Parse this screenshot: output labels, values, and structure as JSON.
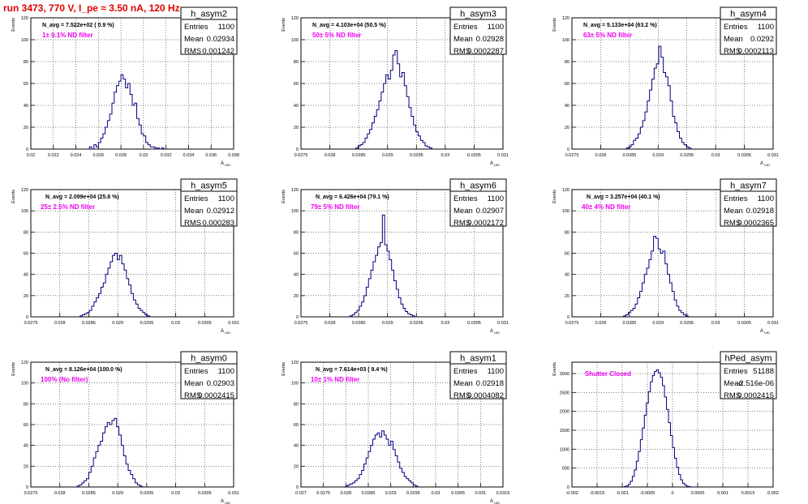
{
  "run_title": "run 3473,   770 V, I_pe ≈ 3.50 nA, 120 Hz",
  "colors": {
    "histogram": "#00007f",
    "annotation": "#ee00ee",
    "title": "#e00000",
    "grid": "#000000"
  },
  "chart_data": [
    {
      "type": "bar",
      "hist_name": "h_asym2",
      "navg": "N_avg = 7.522e+02 ( 0.9 %)",
      "filter": "1± 0.1% ND filter",
      "stats": {
        "entries_label": "Entries",
        "entries": "1100",
        "mean_label": "Mean",
        "mean": "0.02934",
        "rms_label": "RMS",
        "rms": "0.001242"
      },
      "ylabel": "Events",
      "xlabel": "A_UID",
      "xlim": [
        0.02,
        0.038
      ],
      "ylim": [
        0,
        120
      ],
      "xticks": [
        0.02,
        0.022,
        0.024,
        0.026,
        0.028,
        0.03,
        0.032,
        0.034,
        0.036,
        0.038
      ],
      "xtick_labels": [
        "0.02",
        "0.022",
        "0.024",
        "0.026",
        "0.028",
        "0.03",
        "0.032",
        "0.034",
        "0.036",
        "0.038"
      ],
      "yticks": [
        0,
        20,
        40,
        60,
        80,
        100,
        120
      ],
      "ytick_labels": [
        "0",
        "20",
        "40",
        "60",
        "80",
        "100",
        "120"
      ],
      "bin_start": 0.0252,
      "bin_width": 0.0002,
      "counts": [
        2,
        0,
        4,
        2,
        6,
        10,
        14,
        20,
        26,
        32,
        42,
        52,
        58,
        62,
        68,
        64,
        56,
        60,
        50,
        40,
        42,
        28,
        22,
        14,
        12,
        6,
        4,
        2,
        2,
        1,
        1,
        0,
        1
      ]
    },
    {
      "type": "bar",
      "hist_name": "h_asym3",
      "navg": "N_avg = 4.103e+04 (50.5 %)",
      "filter": "50± 5% ND filter",
      "stats": {
        "entries_label": "Entries",
        "entries": "1100",
        "mean_label": "Mean",
        "mean": "0.02928",
        "rms_label": "RMS",
        "rms": "0.0002287"
      },
      "ylabel": "Events",
      "xlabel": "A_UID",
      "xlim": [
        0.0275,
        0.031
      ],
      "ylim": [
        0,
        120
      ],
      "xticks": [
        0.0275,
        0.028,
        0.0285,
        0.029,
        0.0295,
        0.03,
        0.0305,
        0.031
      ],
      "xtick_labels": [
        "0.0275",
        "0.028",
        "0.0285",
        "0.029",
        "0.0295",
        "0.03",
        "0.0305",
        "0.031"
      ],
      "yticks": [
        0,
        20,
        40,
        60,
        80,
        100,
        120
      ],
      "ytick_labels": [
        "0",
        "20",
        "40",
        "60",
        "80",
        "100",
        "120"
      ],
      "bin_start": 0.02845,
      "bin_width": 4e-05,
      "counts": [
        1,
        3,
        4,
        6,
        10,
        14,
        18,
        24,
        30,
        36,
        44,
        52,
        60,
        68,
        64,
        72,
        86,
        90,
        78,
        66,
        70,
        58,
        48,
        38,
        30,
        22,
        16,
        12,
        8,
        6,
        3,
        2,
        1
      ]
    },
    {
      "type": "bar",
      "hist_name": "h_asym4",
      "navg": "N_avg = 5.133e+04 (63.2 %)",
      "filter": "63± 5% ND filter",
      "stats": {
        "entries_label": "Entries",
        "entries": "1100",
        "mean_label": "Mean",
        "mean": "0.0292",
        "rms_label": "RMS",
        "rms": "0.0002113"
      },
      "ylabel": "Events",
      "xlabel": "A_UID",
      "xlim": [
        0.0275,
        0.031
      ],
      "ylim": [
        0,
        120
      ],
      "xticks": [
        0.0275,
        0.028,
        0.0285,
        0.029,
        0.0295,
        0.03,
        0.0305,
        0.031
      ],
      "xtick_labels": [
        "0.0275",
        "0.028",
        "0.0285",
        "0.029",
        "0.0295",
        "0.03",
        "0.0305",
        "0.031"
      ],
      "yticks": [
        0,
        20,
        40,
        60,
        80,
        100,
        120
      ],
      "ytick_labels": [
        "0",
        "20",
        "40",
        "60",
        "80",
        "100",
        "120"
      ],
      "bin_start": 0.02845,
      "bin_width": 4e-05,
      "counts": [
        1,
        2,
        4,
        8,
        10,
        14,
        20,
        26,
        34,
        44,
        54,
        64,
        74,
        78,
        94,
        84,
        70,
        66,
        58,
        44,
        30,
        24,
        16,
        10,
        6,
        4,
        2,
        1
      ]
    },
    {
      "type": "bar",
      "hist_name": "h_asym5",
      "navg": "N_avg = 2.099e+04 (25.8 %)",
      "filter": "25± 2.5% ND filter",
      "stats": {
        "entries_label": "Entries",
        "entries": "1100",
        "mean_label": "Mean",
        "mean": "0.02912",
        "rms_label": "RMS",
        "rms": "0.000283"
      },
      "ylabel": "Events",
      "xlabel": "A_UID",
      "xlim": [
        0.0275,
        0.031
      ],
      "ylim": [
        0,
        120
      ],
      "xticks": [
        0.0275,
        0.028,
        0.0285,
        0.029,
        0.0295,
        0.03,
        0.0305,
        0.031
      ],
      "xtick_labels": [
        "0.0275",
        "0.028",
        "0.0285",
        "0.029",
        "0.0295",
        "0.03",
        "0.0305",
        "0.031"
      ],
      "yticks": [
        0,
        20,
        40,
        60,
        80,
        100,
        120
      ],
      "ytick_labels": [
        "0",
        "20",
        "40",
        "60",
        "80",
        "100",
        "120"
      ],
      "bin_start": 0.02835,
      "bin_width": 4e-05,
      "counts": [
        1,
        2,
        3,
        4,
        6,
        10,
        14,
        18,
        22,
        28,
        32,
        40,
        46,
        52,
        58,
        60,
        54,
        58,
        50,
        44,
        36,
        30,
        22,
        16,
        12,
        8,
        6,
        4,
        2,
        1
      ]
    },
    {
      "type": "bar",
      "hist_name": "h_asym6",
      "navg": "N_avg = 6.426e+04 (79.1 %)",
      "filter": "79± 5% ND filter",
      "stats": {
        "entries_label": "Entries",
        "entries": "1100",
        "mean_label": "Mean",
        "mean": "0.02907",
        "rms_label": "RMS",
        "rms": "0.0002172"
      },
      "ylabel": "Events",
      "xlabel": "A_UID",
      "xlim": [
        0.0275,
        0.031
      ],
      "ylim": [
        0,
        120
      ],
      "xticks": [
        0.0275,
        0.028,
        0.0285,
        0.029,
        0.0295,
        0.03,
        0.0305,
        0.031
      ],
      "xtick_labels": [
        "0.0275",
        "0.028",
        "0.0285",
        "0.029",
        "0.0295",
        "0.03",
        "0.0305",
        "0.031"
      ],
      "yticks": [
        0,
        20,
        40,
        60,
        80,
        100,
        120
      ],
      "ytick_labels": [
        "0",
        "20",
        "40",
        "60",
        "80",
        "100",
        "120"
      ],
      "bin_start": 0.02835,
      "bin_width": 4e-05,
      "counts": [
        1,
        2,
        4,
        6,
        10,
        14,
        20,
        28,
        36,
        44,
        52,
        58,
        66,
        70,
        96,
        68,
        62,
        54,
        44,
        34,
        26,
        18,
        12,
        8,
        5,
        3,
        2,
        1
      ]
    },
    {
      "type": "bar",
      "hist_name": "h_asym7",
      "navg": "N_avg = 3.257e+04 (40.1 %)",
      "filter": "40± 4% ND filter",
      "stats": {
        "entries_label": "Entries",
        "entries": "1100",
        "mean_label": "Mean",
        "mean": "0.02918",
        "rms_label": "RMS",
        "rms": "0.0002365"
      },
      "ylabel": "Events",
      "xlabel": "A_UID",
      "xlim": [
        0.0275,
        0.031
      ],
      "ylim": [
        0,
        120
      ],
      "xticks": [
        0.0275,
        0.028,
        0.0285,
        0.029,
        0.0295,
        0.03,
        0.0305,
        0.031
      ],
      "xtick_labels": [
        "0.0275",
        "0.028",
        "0.0285",
        "0.029",
        "0.0295",
        "0.03",
        "0.0305",
        "0.031"
      ],
      "yticks": [
        0,
        20,
        40,
        60,
        80,
        100,
        120
      ],
      "ytick_labels": [
        "0",
        "20",
        "40",
        "60",
        "80",
        "100",
        "120"
      ],
      "bin_start": 0.0284,
      "bin_width": 4e-05,
      "counts": [
        1,
        2,
        4,
        6,
        8,
        12,
        18,
        24,
        32,
        40,
        46,
        54,
        62,
        76,
        74,
        64,
        60,
        62,
        50,
        40,
        32,
        24,
        16,
        10,
        6,
        4,
        2,
        1
      ]
    },
    {
      "type": "bar",
      "hist_name": "h_asym0",
      "navg": "N_avg = 8.126e+04 (100.0 %)",
      "filter": "100% (No filter)",
      "stats": {
        "entries_label": "Entries",
        "entries": "1100",
        "mean_label": "Mean",
        "mean": "0.02903",
        "rms_label": "RMS",
        "rms": "0.0002415"
      },
      "ylabel": "Events",
      "xlabel": "A_UID",
      "xlim": [
        0.0275,
        0.031
      ],
      "ylim": [
        0,
        120
      ],
      "xticks": [
        0.0275,
        0.028,
        0.0285,
        0.029,
        0.0295,
        0.03,
        0.0305,
        0.031
      ],
      "xtick_labels": [
        "0.0275",
        "0.028",
        "0.0285",
        "0.029",
        "0.0295",
        "0.03",
        "0.0305",
        "0.031"
      ],
      "yticks": [
        0,
        20,
        40,
        60,
        80,
        100,
        120
      ],
      "ytick_labels": [
        "0",
        "20",
        "40",
        "60",
        "80",
        "100",
        "120"
      ],
      "bin_start": 0.0283,
      "bin_width": 4e-05,
      "counts": [
        1,
        2,
        4,
        6,
        8,
        14,
        20,
        28,
        34,
        40,
        44,
        52,
        58,
        62,
        60,
        64,
        66,
        58,
        50,
        40,
        30,
        22,
        16,
        12,
        8,
        4,
        2,
        1
      ]
    },
    {
      "type": "bar",
      "hist_name": "h_asym1",
      "navg": "N_avg = 7.614e+03 ( 9.4 %)",
      "filter": "10± 1% ND filter",
      "stats": {
        "entries_label": "Entries",
        "entries": "1100",
        "mean_label": "Mean",
        "mean": "0.02918",
        "rms_label": "RMS",
        "rms": "0.0004082"
      },
      "ylabel": "Events",
      "xlabel": "A_UID",
      "xlim": [
        0.027,
        0.0315
      ],
      "ylim": [
        0,
        120
      ],
      "xticks": [
        0.027,
        0.0275,
        0.028,
        0.0285,
        0.029,
        0.0295,
        0.03,
        0.0305,
        0.031,
        0.0315
      ],
      "xtick_labels": [
        "0.027",
        "0.0275",
        "0.028",
        "0.0285",
        "0.029",
        "0.0295",
        "0.03",
        "0.0305",
        "0.031",
        "0.0315"
      ],
      "yticks": [
        0,
        20,
        40,
        60,
        80,
        100,
        120
      ],
      "ytick_labels": [
        "0",
        "20",
        "40",
        "60",
        "80",
        "100",
        "120"
      ],
      "bin_start": 0.028,
      "bin_width": 5e-05,
      "counts": [
        1,
        2,
        3,
        4,
        6,
        8,
        12,
        16,
        22,
        28,
        34,
        40,
        46,
        50,
        52,
        48,
        54,
        50,
        46,
        40,
        44,
        36,
        30,
        24,
        18,
        14,
        10,
        8,
        6,
        4,
        2,
        1
      ]
    },
    {
      "type": "bar",
      "hist_name": "hPed_asym",
      "navg": "",
      "filter": "Shutter Closed",
      "stats": {
        "entries_label": "Entries",
        "entries": "51188",
        "mean_label": "Mean",
        "mean": "-2.516e-06",
        "rms_label": "RMS",
        "rms": "0.0002415"
      },
      "ylabel": "Events",
      "xlabel": "",
      "xlim": [
        -0.002,
        0.002
      ],
      "ylim": [
        0,
        3300
      ],
      "xticks": [
        -0.002,
        -0.0015,
        -0.001,
        -0.0005,
        0,
        0.0005,
        0.001,
        0.0015,
        0.002
      ],
      "xtick_labels": [
        "-0.002",
        "-0.0015",
        "-0.001",
        "-0.0005",
        "0",
        "0.0005",
        "0.001",
        "0.0015",
        "0.002"
      ],
      "yticks": [
        0,
        500,
        1000,
        1500,
        2000,
        2500,
        3000
      ],
      "ytick_labels": [
        "0",
        "500",
        "1000",
        "1500",
        "2000",
        "2500",
        "3000"
      ],
      "bin_start": -0.00096,
      "bin_width": 4e-05,
      "counts": [
        10,
        30,
        70,
        150,
        280,
        450,
        680,
        940,
        1250,
        1560,
        1900,
        2220,
        2520,
        2780,
        2950,
        3050,
        3100,
        3020,
        2900,
        2680,
        2380,
        2050,
        1700,
        1360,
        1040,
        760,
        520,
        330,
        190,
        100,
        50,
        20,
        8
      ]
    }
  ]
}
